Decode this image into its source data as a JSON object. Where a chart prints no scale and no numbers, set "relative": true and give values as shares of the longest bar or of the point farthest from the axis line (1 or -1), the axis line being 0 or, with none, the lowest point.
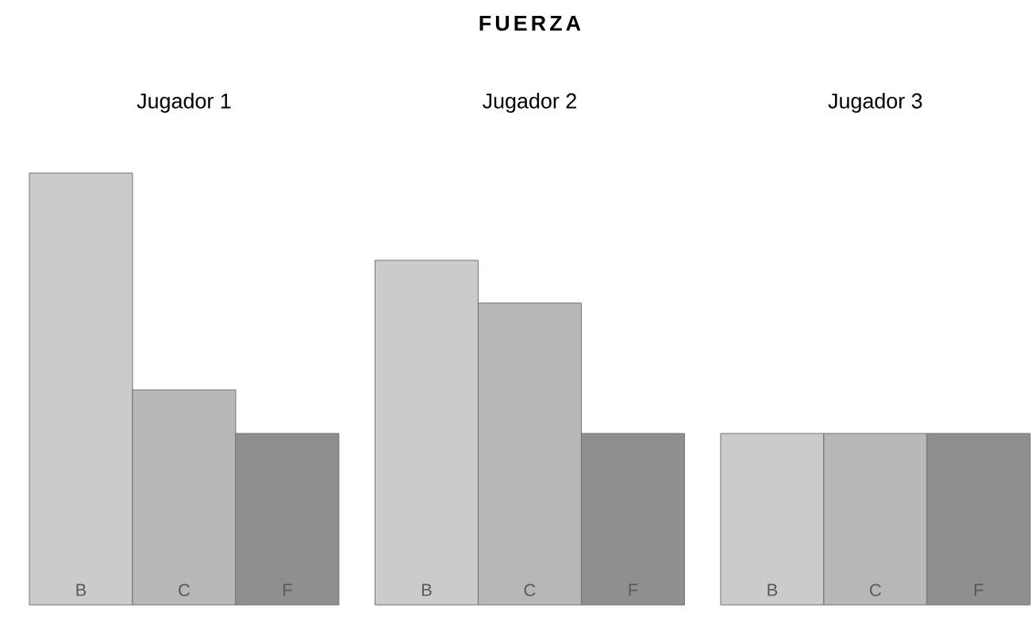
{
  "chart_data": {
    "type": "bar",
    "relative": true,
    "title": "FUERZA",
    "annotations": [
      "Jugador 1",
      "Jugador 2",
      "Jugador 3"
    ],
    "categories": [
      "B",
      "C",
      "F",
      "B",
      "C",
      "F",
      "B",
      "C",
      "F"
    ],
    "values": [
      1,
      0.498,
      0.397,
      0.798,
      0.699,
      0.397,
      0.397,
      0.397,
      0.397
    ],
    "colors": [
      "#cbcbcb",
      "#b7b7b7",
      "#8f8f8f",
      "#cbcbcb",
      "#b7b7b7",
      "#8f8f8f",
      "#cbcbcb",
      "#b7b7b7",
      "#8f8f8f"
    ]
  }
}
